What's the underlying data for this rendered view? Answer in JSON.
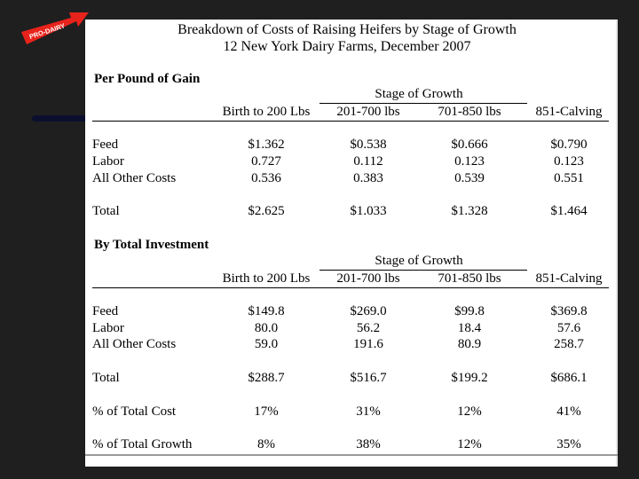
{
  "logo": {
    "text": "PRO-DAIRY",
    "color": "#e8231c"
  },
  "title": {
    "line1": "Breakdown of Costs of Raising Heifers by Stage of Growth",
    "line2": "12 New York Dairy Farms, December 2007"
  },
  "section1": {
    "heading": "Per Pound of Gain",
    "group_label": "Stage of Growth",
    "columns": [
      "Birth to 200 Lbs",
      "201-700 lbs",
      "701-850 lbs",
      "851-Calving"
    ],
    "rows": [
      {
        "label": "Feed",
        "values": [
          "$1.362",
          "$0.538",
          "$0.666",
          "$0.790"
        ]
      },
      {
        "label": "Labor",
        "values": [
          "0.727",
          "0.112",
          "0.123",
          "0.123"
        ]
      },
      {
        "label": "All Other Costs",
        "values": [
          "0.536",
          "0.383",
          "0.539",
          "0.551"
        ]
      },
      {
        "label": "Total",
        "values": [
          "$2.625",
          "$1.033",
          "$1.328",
          "$1.464"
        ]
      }
    ]
  },
  "section2": {
    "heading": "By Total Investment",
    "group_label": "Stage of Growth",
    "columns": [
      "Birth to 200 Lbs",
      "201-700 lbs",
      "701-850 lbs",
      "851-Calving"
    ],
    "rows": [
      {
        "label": "Feed",
        "values": [
          "$149.8",
          "$269.0",
          "$99.8",
          "$369.8"
        ]
      },
      {
        "label": "Labor",
        "values": [
          "80.0",
          "56.2",
          "18.4",
          "57.6"
        ]
      },
      {
        "label": "All Other Costs",
        "values": [
          "59.0",
          "191.6",
          "80.9",
          "258.7"
        ]
      },
      {
        "label": "Total",
        "values": [
          "$288.7",
          "$516.7",
          "$199.2",
          "$686.1"
        ]
      },
      {
        "label": "% of Total Cost",
        "values": [
          "17%",
          "31%",
          "12%",
          "41%"
        ]
      },
      {
        "label": "% of Total Growth",
        "values": [
          "8%",
          "38%",
          "12%",
          "35%"
        ]
      }
    ]
  }
}
